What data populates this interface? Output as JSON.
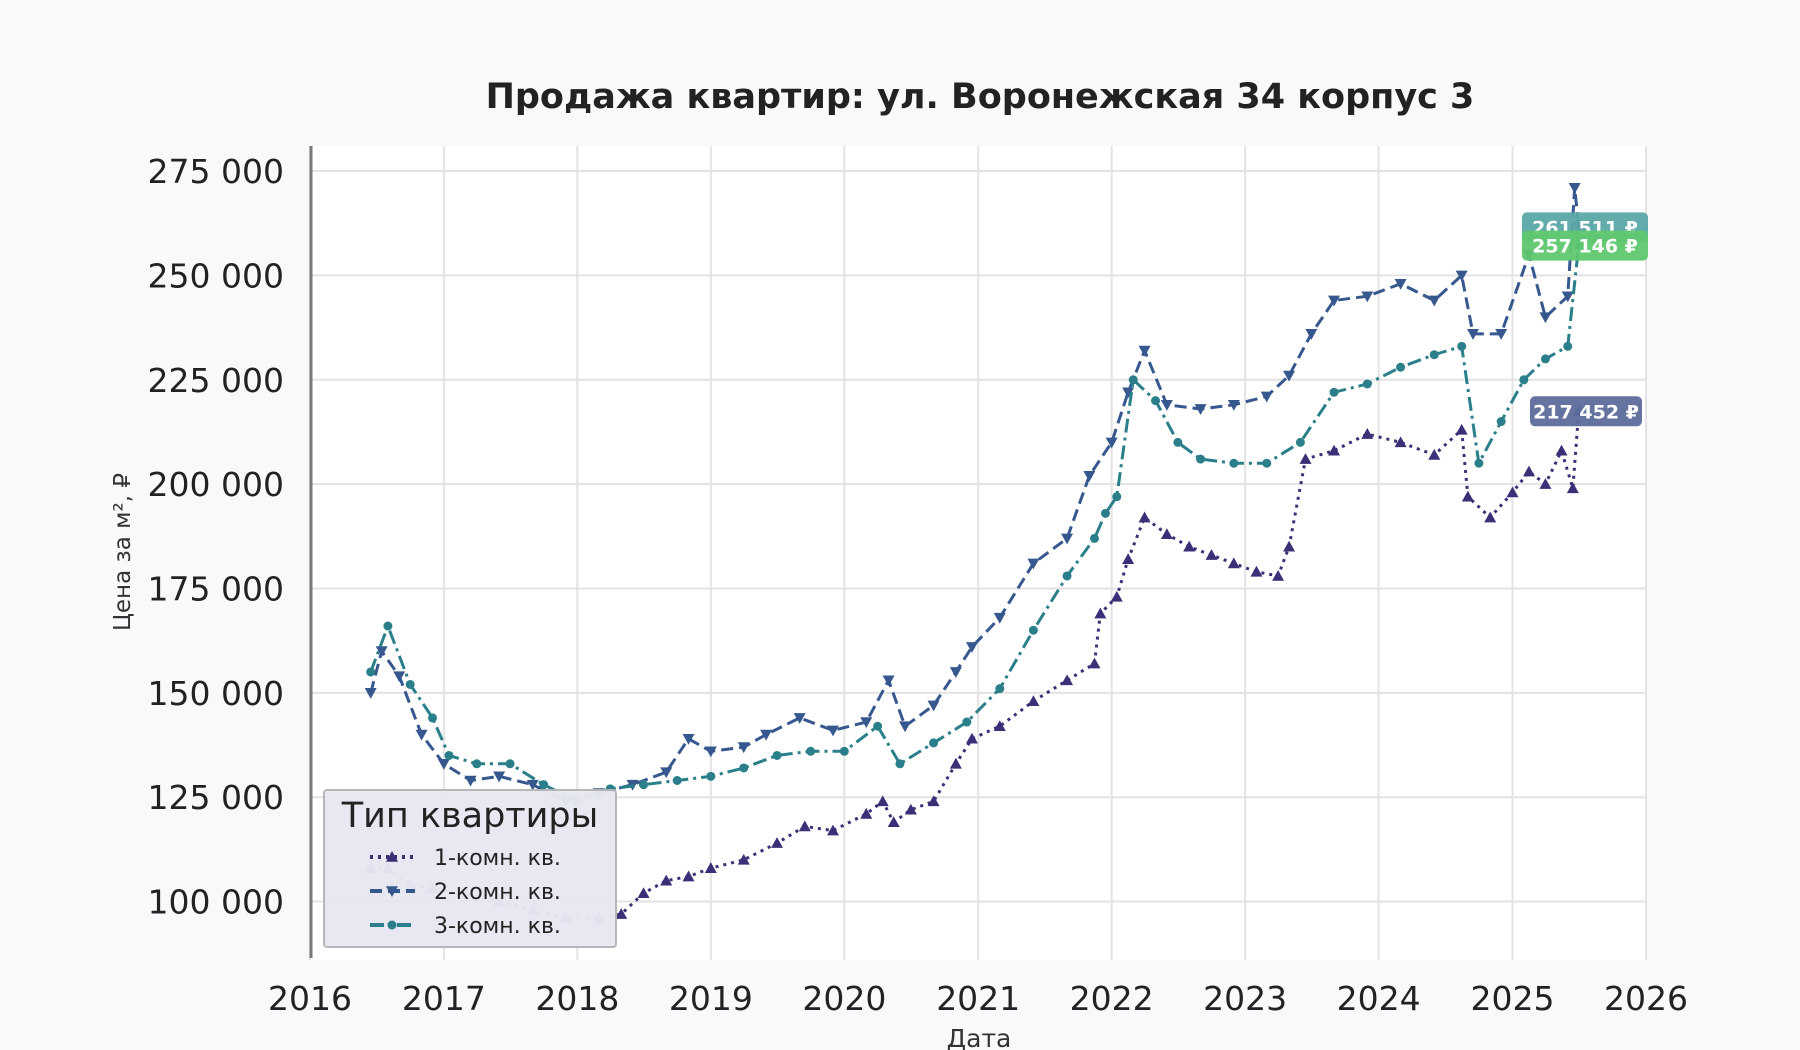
{
  "chart_data": {
    "type": "line",
    "title": "Продажа квартир: ул. Воронежская 34 корпус 3",
    "xlabel": "Дата",
    "ylabel": "Цена за м², ₽",
    "x_ticks": [
      "2016",
      "2017",
      "2018",
      "2019",
      "2020",
      "2021",
      "2022",
      "2023",
      "2024",
      "2025",
      "2026"
    ],
    "y_ticks": [
      "100 000",
      "125 000",
      "150 000",
      "175 000",
      "200 000",
      "225 000",
      "250 000",
      "275 000"
    ],
    "xlim": [
      "2016-01-01",
      "2026-01-01"
    ],
    "ylim": [
      86000,
      281000
    ],
    "grid": true,
    "legend": {
      "title": "Тип квартиры",
      "position": "bottom-left"
    },
    "end_labels": [
      {
        "series": "2-комн. кв.",
        "text": "261 511 ₽",
        "color": "#5aa8a6"
      },
      {
        "series": "3-комн. кв.",
        "text": "257 146 ₽",
        "color": "#5fc86f"
      },
      {
        "series": "1-комн. кв.",
        "text": "217 452 ₽",
        "color": "#5d6b9c"
      }
    ],
    "series": [
      {
        "name": "1-комн. кв.",
        "color": "#3b2f78",
        "line": "dotted",
        "marker": "triangle-up",
        "points": [
          [
            "2016-06-15",
            108000
          ],
          [
            "2016-08-01",
            108000
          ],
          [
            "2016-10-01",
            104000
          ],
          [
            "2016-12-01",
            103000
          ],
          [
            "2017-03-01",
            102000
          ],
          [
            "2017-06-01",
            100000
          ],
          [
            "2017-09-01",
            98000
          ],
          [
            "2017-12-01",
            96000
          ],
          [
            "2018-03-01",
            96000
          ],
          [
            "2018-05-01",
            97000
          ],
          [
            "2018-07-01",
            102000
          ],
          [
            "2018-09-01",
            105000
          ],
          [
            "2018-11-01",
            106000
          ],
          [
            "2019-01-01",
            108000
          ],
          [
            "2019-04-01",
            110000
          ],
          [
            "2019-07-01",
            114000
          ],
          [
            "2019-09-15",
            118000
          ],
          [
            "2019-12-01",
            117000
          ],
          [
            "2020-03-01",
            121000
          ],
          [
            "2020-04-15",
            124000
          ],
          [
            "2020-05-15",
            119000
          ],
          [
            "2020-07-01",
            122000
          ],
          [
            "2020-09-01",
            124000
          ],
          [
            "2020-11-01",
            133000
          ],
          [
            "2020-12-15",
            139000
          ],
          [
            "2021-03-01",
            142000
          ],
          [
            "2021-06-01",
            148000
          ],
          [
            "2021-09-01",
            153000
          ],
          [
            "2021-11-15",
            157000
          ],
          [
            "2021-12-01",
            169000
          ],
          [
            "2022-01-15",
            173000
          ],
          [
            "2022-02-15",
            182000
          ],
          [
            "2022-04-01",
            192000
          ],
          [
            "2022-06-01",
            188000
          ],
          [
            "2022-08-01",
            185000
          ],
          [
            "2022-10-01",
            183000
          ],
          [
            "2022-12-01",
            181000
          ],
          [
            "2023-02-01",
            179000
          ],
          [
            "2023-04-01",
            178000
          ],
          [
            "2023-05-01",
            185000
          ],
          [
            "2023-06-15",
            206000
          ],
          [
            "2023-09-01",
            208000
          ],
          [
            "2023-12-01",
            212000
          ],
          [
            "2024-03-01",
            210000
          ],
          [
            "2024-06-01",
            207000
          ],
          [
            "2024-08-15",
            213000
          ],
          [
            "2024-09-01",
            197000
          ],
          [
            "2024-11-01",
            192000
          ],
          [
            "2025-01-01",
            198000
          ],
          [
            "2025-02-15",
            203000
          ],
          [
            "2025-04-01",
            200000
          ],
          [
            "2025-05-15",
            208000
          ],
          [
            "2025-06-15",
            199000
          ],
          [
            "2025-07-01",
            217452
          ]
        ]
      },
      {
        "name": "2-комн. кв.",
        "color": "#36588f",
        "line": "dashed",
        "marker": "triangle-down",
        "points": [
          [
            "2016-06-15",
            150000
          ],
          [
            "2016-07-15",
            160000
          ],
          [
            "2016-09-01",
            154000
          ],
          [
            "2016-11-01",
            140000
          ],
          [
            "2017-01-01",
            133000
          ],
          [
            "2017-03-15",
            129000
          ],
          [
            "2017-06-01",
            130000
          ],
          [
            "2017-09-01",
            128000
          ],
          [
            "2017-12-01",
            124000
          ],
          [
            "2018-03-01",
            126000
          ],
          [
            "2018-06-01",
            128000
          ],
          [
            "2018-09-01",
            131000
          ],
          [
            "2018-11-01",
            139000
          ],
          [
            "2019-01-01",
            136000
          ],
          [
            "2019-04-01",
            137000
          ],
          [
            "2019-06-01",
            140000
          ],
          [
            "2019-09-01",
            144000
          ],
          [
            "2019-12-01",
            141000
          ],
          [
            "2020-03-01",
            143000
          ],
          [
            "2020-05-01",
            153000
          ],
          [
            "2020-06-15",
            142000
          ],
          [
            "2020-09-01",
            147000
          ],
          [
            "2020-11-01",
            155000
          ],
          [
            "2020-12-15",
            161000
          ],
          [
            "2021-03-01",
            168000
          ],
          [
            "2021-06-01",
            181000
          ],
          [
            "2021-09-01",
            187000
          ],
          [
            "2021-11-01",
            202000
          ],
          [
            "2022-01-01",
            210000
          ],
          [
            "2022-02-15",
            222000
          ],
          [
            "2022-04-01",
            232000
          ],
          [
            "2022-06-01",
            219000
          ],
          [
            "2022-09-01",
            218000
          ],
          [
            "2022-12-01",
            219000
          ],
          [
            "2023-03-01",
            221000
          ],
          [
            "2023-05-01",
            226000
          ],
          [
            "2023-07-01",
            236000
          ],
          [
            "2023-09-01",
            244000
          ],
          [
            "2023-12-01",
            245000
          ],
          [
            "2024-03-01",
            248000
          ],
          [
            "2024-06-01",
            244000
          ],
          [
            "2024-08-15",
            250000
          ],
          [
            "2024-09-15",
            236000
          ],
          [
            "2024-12-01",
            236000
          ],
          [
            "2025-02-15",
            255000
          ],
          [
            "2025-04-01",
            240000
          ],
          [
            "2025-06-01",
            245000
          ],
          [
            "2025-06-20",
            271000
          ],
          [
            "2025-07-01",
            261511
          ]
        ]
      },
      {
        "name": "3-комн. кв.",
        "color": "#2a7f8a",
        "line": "dash-dot",
        "marker": "circle",
        "points": [
          [
            "2016-06-15",
            155000
          ],
          [
            "2016-08-01",
            166000
          ],
          [
            "2016-10-01",
            152000
          ],
          [
            "2016-12-01",
            144000
          ],
          [
            "2017-01-15",
            135000
          ],
          [
            "2017-04-01",
            133000
          ],
          [
            "2017-07-01",
            133000
          ],
          [
            "2017-10-01",
            128000
          ],
          [
            "2018-01-01",
            124000
          ],
          [
            "2018-04-01",
            127000
          ],
          [
            "2018-07-01",
            128000
          ],
          [
            "2018-10-01",
            129000
          ],
          [
            "2019-01-01",
            130000
          ],
          [
            "2019-04-01",
            132000
          ],
          [
            "2019-07-01",
            135000
          ],
          [
            "2019-10-01",
            136000
          ],
          [
            "2020-01-01",
            136000
          ],
          [
            "2020-04-01",
            142000
          ],
          [
            "2020-06-01",
            133000
          ],
          [
            "2020-09-01",
            138000
          ],
          [
            "2020-12-01",
            143000
          ],
          [
            "2021-03-01",
            151000
          ],
          [
            "2021-06-01",
            165000
          ],
          [
            "2021-09-01",
            178000
          ],
          [
            "2021-11-15",
            187000
          ],
          [
            "2021-12-15",
            193000
          ],
          [
            "2022-01-15",
            197000
          ],
          [
            "2022-03-01",
            225000
          ],
          [
            "2022-05-01",
            220000
          ],
          [
            "2022-07-01",
            210000
          ],
          [
            "2022-09-01",
            206000
          ],
          [
            "2022-12-01",
            205000
          ],
          [
            "2023-03-01",
            205000
          ],
          [
            "2023-06-01",
            210000
          ],
          [
            "2023-09-01",
            222000
          ],
          [
            "2023-12-01",
            224000
          ],
          [
            "2024-03-01",
            228000
          ],
          [
            "2024-06-01",
            231000
          ],
          [
            "2024-08-15",
            233000
          ],
          [
            "2024-10-01",
            205000
          ],
          [
            "2024-12-01",
            215000
          ],
          [
            "2025-02-01",
            225000
          ],
          [
            "2025-04-01",
            230000
          ],
          [
            "2025-06-01",
            233000
          ],
          [
            "2025-07-01",
            257146
          ]
        ]
      }
    ]
  }
}
